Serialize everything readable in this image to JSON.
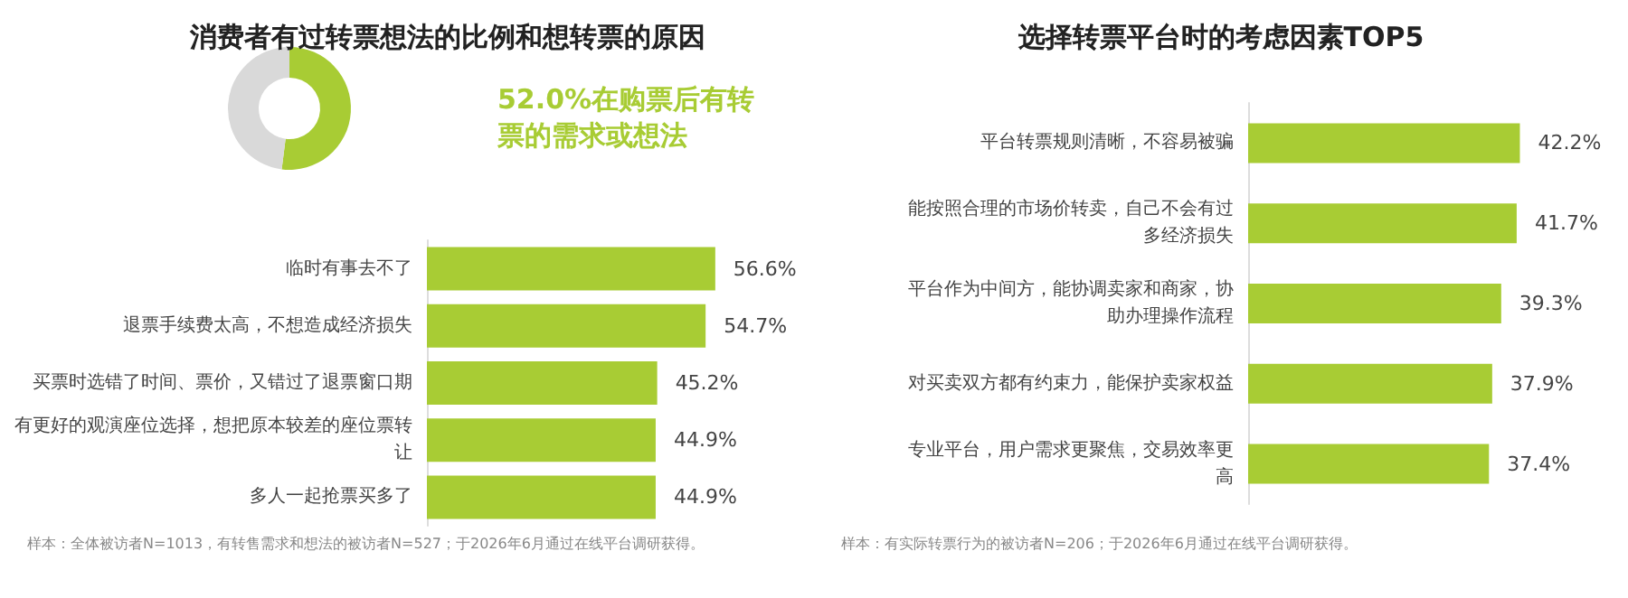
{
  "chart_data": [
    {
      "type": "donut",
      "title": "消费者有过转票想法的比例和想转票的原因",
      "categories": [
        null,
        null
      ],
      "values": [
        52.0,
        48.0
      ],
      "colors": [
        "#a8cc34",
        "#d9d9d9"
      ],
      "annotations": [
        "52.0%在购票后有转票的需求或想法"
      ]
    },
    {
      "type": "bar",
      "orientation": "horizontal",
      "categories": [
        "临时有事去不了",
        "退票手续费太高，不想造成经济损失",
        "买票时选错了时间、票价，又错过了退票窗口期",
        "有更好的观演座位选择，想把原本较差的座位票转让",
        "多人一起抢票买多了"
      ],
      "values": [
        56.6,
        54.7,
        45.2,
        44.9,
        44.9
      ],
      "color": "#a8cc34",
      "value_labels": [
        "56.6%",
        "54.7%",
        "45.2%",
        "44.9%",
        "44.9%"
      ],
      "annotations": [
        "样本：全体被访者N=1013，有转售需求和想法的被访者N=527；于2026年6月通过在线平台调研获得。"
      ]
    },
    {
      "type": "bar",
      "orientation": "horizontal",
      "title": "选择转票平台时的考虑因素TOP5",
      "categories": [
        "平台转票规则清晰，不容易被骗",
        "能按照合理的市场价转卖，自己不会有过多经济损失",
        "平台作为中间方，能协调卖家和商家，协助办理操作流程",
        "对买卖双方都有约束力，能保护卖家权益",
        "专业平台，用户需求更聚焦，交易效率更高"
      ],
      "values": [
        42.2,
        41.7,
        39.3,
        37.9,
        37.4
      ],
      "color": "#a8cc34",
      "value_labels": [
        "42.2%",
        "41.7%",
        "39.3%",
        "37.9%",
        "37.4%"
      ],
      "annotations": [
        "样本：有实际转票行为的被访者N=206；于2026年6月通过在线平台调研获得。"
      ]
    }
  ]
}
